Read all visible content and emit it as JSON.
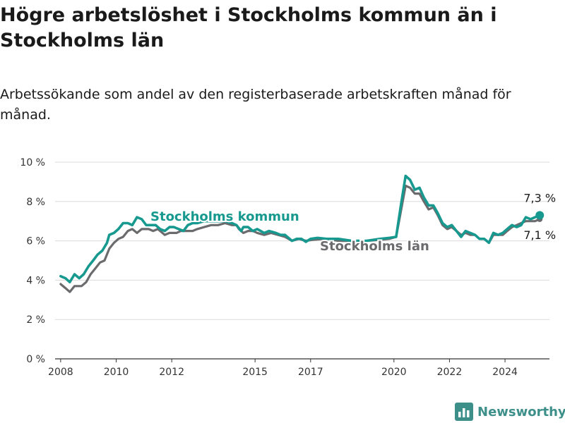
{
  "header": {
    "title": "Högre arbetslöshet i Stockholms kommun än i Stockholms län",
    "subtitle": "Arbetssökande som andel av den registerbaserade arbetskraften månad för månad."
  },
  "brand": {
    "name": "Newsworthy",
    "icon": "bar-chart-icon",
    "color": "#3d8f8a"
  },
  "chart_data": {
    "type": "line",
    "x_unit": "year",
    "xlim": [
      2007.8,
      2025.6
    ],
    "ylim": [
      0,
      10
    ],
    "y_ticks": [
      "0 %",
      "2 %",
      "4 %",
      "6 %",
      "8 %",
      "10 %"
    ],
    "y_tick_values": [
      0,
      2,
      4,
      6,
      8,
      10
    ],
    "x_ticks": [
      "2008",
      "2010",
      "2012",
      "2015",
      "2017",
      "2020",
      "2022",
      "2024"
    ],
    "x_tick_values": [
      2008,
      2010,
      2012,
      2015,
      2017,
      2020,
      2022,
      2024
    ],
    "grid": true,
    "series": [
      {
        "name": "Stockholms län",
        "color": "#6b6b6e",
        "end_label": "7,1 %",
        "points": [
          [
            2008.0,
            3.8
          ],
          [
            2008.17,
            3.6
          ],
          [
            2008.33,
            3.4
          ],
          [
            2008.5,
            3.7
          ],
          [
            2008.75,
            3.7
          ],
          [
            2008.92,
            3.9
          ],
          [
            2009.08,
            4.3
          ],
          [
            2009.25,
            4.6
          ],
          [
            2009.42,
            4.9
          ],
          [
            2009.58,
            5.0
          ],
          [
            2009.75,
            5.6
          ],
          [
            2009.92,
            5.9
          ],
          [
            2010.08,
            6.1
          ],
          [
            2010.25,
            6.2
          ],
          [
            2010.42,
            6.5
          ],
          [
            2010.58,
            6.6
          ],
          [
            2010.75,
            6.4
          ],
          [
            2010.92,
            6.6
          ],
          [
            2011.17,
            6.6
          ],
          [
            2011.33,
            6.5
          ],
          [
            2011.5,
            6.6
          ],
          [
            2011.75,
            6.3
          ],
          [
            2011.92,
            6.4
          ],
          [
            2012.17,
            6.4
          ],
          [
            2012.33,
            6.5
          ],
          [
            2012.5,
            6.5
          ],
          [
            2012.75,
            6.5
          ],
          [
            2012.92,
            6.6
          ],
          [
            2013.17,
            6.7
          ],
          [
            2013.42,
            6.8
          ],
          [
            2013.67,
            6.8
          ],
          [
            2013.92,
            6.9
          ],
          [
            2014.17,
            6.8
          ],
          [
            2014.33,
            6.8
          ],
          [
            2014.42,
            6.6
          ],
          [
            2014.58,
            6.4
          ],
          [
            2014.75,
            6.5
          ],
          [
            2014.92,
            6.5
          ],
          [
            2015.08,
            6.4
          ],
          [
            2015.33,
            6.3
          ],
          [
            2015.58,
            6.4
          ],
          [
            2015.83,
            6.3
          ],
          [
            2016.08,
            6.2
          ],
          [
            2016.33,
            6.0
          ],
          [
            2016.58,
            6.1
          ],
          [
            2016.83,
            6.0
          ],
          [
            2017.08,
            6.05
          ],
          [
            2017.5,
            6.1
          ],
          [
            2018.0,
            6.0
          ],
          [
            2018.5,
            6.0
          ],
          [
            2019.0,
            6.0
          ],
          [
            2019.5,
            6.05
          ],
          [
            2019.83,
            6.1
          ],
          [
            2020.08,
            6.2
          ],
          [
            2020.25,
            7.5
          ],
          [
            2020.42,
            8.8
          ],
          [
            2020.58,
            8.7
          ],
          [
            2020.75,
            8.4
          ],
          [
            2020.92,
            8.4
          ],
          [
            2021.08,
            8.0
          ],
          [
            2021.25,
            7.6
          ],
          [
            2021.42,
            7.7
          ],
          [
            2021.58,
            7.3
          ],
          [
            2021.75,
            6.8
          ],
          [
            2021.92,
            6.6
          ],
          [
            2022.08,
            6.7
          ],
          [
            2022.25,
            6.5
          ],
          [
            2022.42,
            6.3
          ],
          [
            2022.58,
            6.4
          ],
          [
            2022.75,
            6.3
          ],
          [
            2022.92,
            6.3
          ],
          [
            2023.08,
            6.1
          ],
          [
            2023.25,
            6.1
          ],
          [
            2023.42,
            5.9
          ],
          [
            2023.58,
            6.3
          ],
          [
            2023.75,
            6.3
          ],
          [
            2023.92,
            6.3
          ],
          [
            2024.08,
            6.5
          ],
          [
            2024.25,
            6.7
          ],
          [
            2024.42,
            6.8
          ],
          [
            2024.58,
            6.9
          ],
          [
            2024.75,
            7.0
          ],
          [
            2024.92,
            7.0
          ],
          [
            2025.08,
            7.0
          ],
          [
            2025.25,
            7.1
          ]
        ]
      },
      {
        "name": "Stockholms kommun",
        "color": "#17998f",
        "end_label": "7,3 %",
        "points": [
          [
            2008.0,
            4.2
          ],
          [
            2008.17,
            4.1
          ],
          [
            2008.33,
            3.9
          ],
          [
            2008.5,
            4.3
          ],
          [
            2008.67,
            4.1
          ],
          [
            2008.83,
            4.3
          ],
          [
            2009.0,
            4.7
          ],
          [
            2009.17,
            5.0
          ],
          [
            2009.33,
            5.3
          ],
          [
            2009.5,
            5.5
          ],
          [
            2009.67,
            5.9
          ],
          [
            2009.75,
            6.3
          ],
          [
            2009.92,
            6.4
          ],
          [
            2010.08,
            6.6
          ],
          [
            2010.25,
            6.9
          ],
          [
            2010.42,
            6.9
          ],
          [
            2010.58,
            6.8
          ],
          [
            2010.75,
            7.2
          ],
          [
            2010.92,
            7.1
          ],
          [
            2011.08,
            6.8
          ],
          [
            2011.25,
            6.8
          ],
          [
            2011.42,
            6.8
          ],
          [
            2011.58,
            6.6
          ],
          [
            2011.75,
            6.5
          ],
          [
            2011.92,
            6.7
          ],
          [
            2012.08,
            6.7
          ],
          [
            2012.25,
            6.6
          ],
          [
            2012.42,
            6.5
          ],
          [
            2012.58,
            6.8
          ],
          [
            2012.75,
            6.9
          ],
          [
            2012.92,
            6.9
          ],
          [
            2013.17,
            7.0
          ],
          [
            2013.42,
            7.0
          ],
          [
            2013.67,
            7.0
          ],
          [
            2013.92,
            7.0
          ],
          [
            2014.17,
            6.9
          ],
          [
            2014.33,
            6.8
          ],
          [
            2014.5,
            6.5
          ],
          [
            2014.58,
            6.7
          ],
          [
            2014.75,
            6.7
          ],
          [
            2014.92,
            6.5
          ],
          [
            2015.08,
            6.6
          ],
          [
            2015.33,
            6.4
          ],
          [
            2015.5,
            6.5
          ],
          [
            2015.75,
            6.4
          ],
          [
            2015.92,
            6.3
          ],
          [
            2016.08,
            6.3
          ],
          [
            2016.33,
            6.0
          ],
          [
            2016.5,
            6.1
          ],
          [
            2016.67,
            6.1
          ],
          [
            2016.83,
            5.95
          ],
          [
            2017.0,
            6.1
          ],
          [
            2017.25,
            6.15
          ],
          [
            2017.58,
            6.1
          ],
          [
            2018.0,
            6.1
          ],
          [
            2018.5,
            6.0
          ],
          [
            2019.0,
            6.0
          ],
          [
            2019.5,
            6.1
          ],
          [
            2019.83,
            6.15
          ],
          [
            2020.08,
            6.2
          ],
          [
            2020.25,
            7.8
          ],
          [
            2020.42,
            9.3
          ],
          [
            2020.58,
            9.1
          ],
          [
            2020.75,
            8.6
          ],
          [
            2020.92,
            8.7
          ],
          [
            2021.08,
            8.2
          ],
          [
            2021.25,
            7.8
          ],
          [
            2021.42,
            7.8
          ],
          [
            2021.58,
            7.4
          ],
          [
            2021.75,
            6.9
          ],
          [
            2021.92,
            6.7
          ],
          [
            2022.08,
            6.8
          ],
          [
            2022.25,
            6.5
          ],
          [
            2022.42,
            6.2
          ],
          [
            2022.58,
            6.5
          ],
          [
            2022.75,
            6.4
          ],
          [
            2022.92,
            6.3
          ],
          [
            2023.08,
            6.1
          ],
          [
            2023.25,
            6.1
          ],
          [
            2023.42,
            5.9
          ],
          [
            2023.58,
            6.4
          ],
          [
            2023.75,
            6.3
          ],
          [
            2023.92,
            6.4
          ],
          [
            2024.08,
            6.6
          ],
          [
            2024.25,
            6.8
          ],
          [
            2024.42,
            6.7
          ],
          [
            2024.58,
            6.8
          ],
          [
            2024.75,
            7.2
          ],
          [
            2024.92,
            7.1
          ],
          [
            2025.08,
            7.2
          ],
          [
            2025.25,
            7.3
          ]
        ]
      }
    ]
  }
}
